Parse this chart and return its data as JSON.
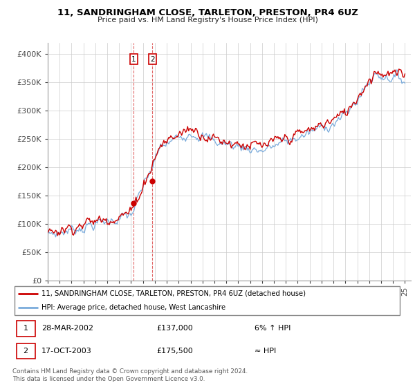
{
  "title": "11, SANDRINGHAM CLOSE, TARLETON, PRESTON, PR4 6UZ",
  "subtitle": "Price paid vs. HM Land Registry's House Price Index (HPI)",
  "legend_line1": "11, SANDRINGHAM CLOSE, TARLETON, PRESTON, PR4 6UZ (detached house)",
  "legend_line2": "HPI: Average price, detached house, West Lancashire",
  "transaction1_date": "28-MAR-2002",
  "transaction1_price": "£137,000",
  "transaction1_hpi": "6% ↑ HPI",
  "transaction2_date": "17-OCT-2003",
  "transaction2_price": "£175,500",
  "transaction2_hpi": "≈ HPI",
  "footer": "Contains HM Land Registry data © Crown copyright and database right 2024.\nThis data is licensed under the Open Government Licence v3.0.",
  "hpi_color": "#7aabdb",
  "price_color": "#cc0000",
  "marker_color": "#cc0000",
  "ylim": [
    0,
    420000
  ],
  "yticks": [
    0,
    50000,
    100000,
    150000,
    200000,
    250000,
    300000,
    350000,
    400000
  ],
  "ytick_labels": [
    "£0",
    "£50K",
    "£100K",
    "£150K",
    "£200K",
    "£250K",
    "£300K",
    "£350K",
    "£400K"
  ],
  "sale1_year": 2002.23,
  "sale1_price": 137000,
  "sale2_year": 2003.8,
  "sale2_price": 175500,
  "xmin": 1995,
  "xmax": 2025.5
}
